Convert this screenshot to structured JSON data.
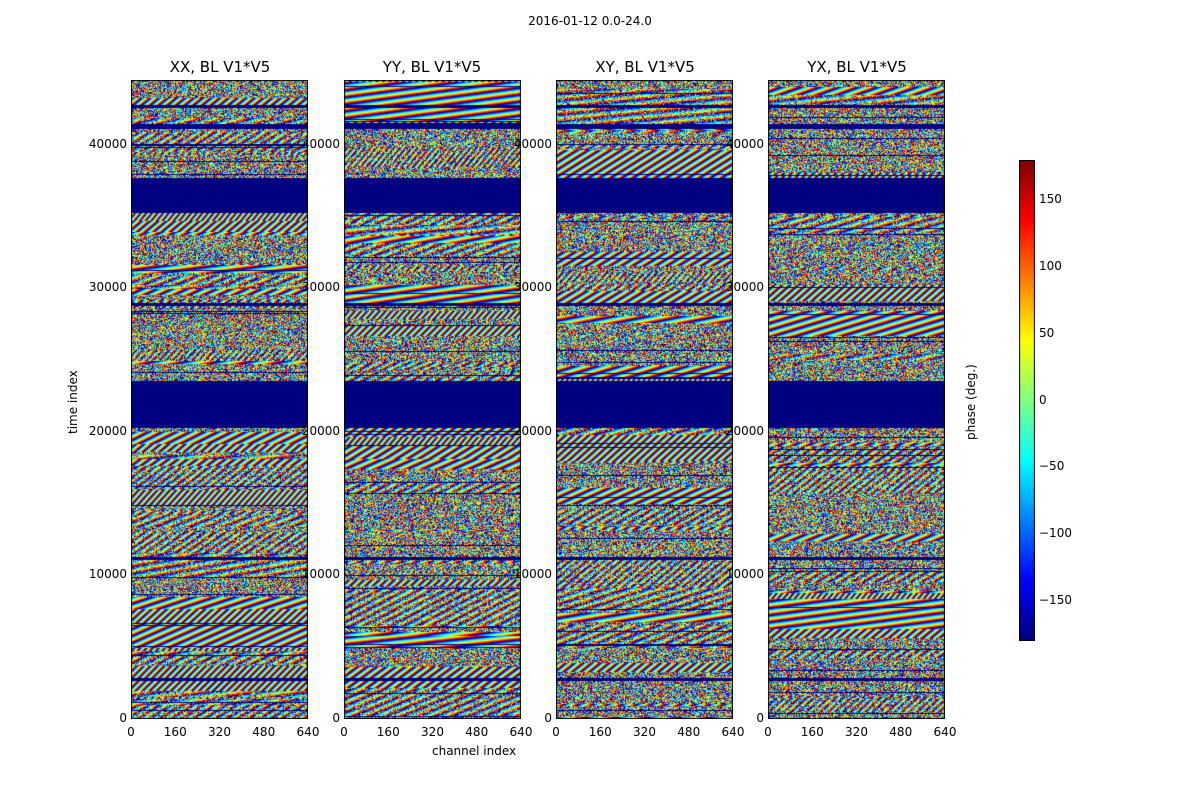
{
  "chart_data": {
    "type": "heatmap",
    "suptitle": "2016-01-12 0.0-24.0",
    "xlabel": "channel index",
    "ylabel": "time index",
    "x_ticks": [
      "0",
      "160",
      "320",
      "480",
      "640"
    ],
    "x_tick_values": [
      0,
      160,
      320,
      480,
      640
    ],
    "y_ticks": [
      "0",
      "10000",
      "20000",
      "30000",
      "40000"
    ],
    "y_tick_values": [
      0,
      10000,
      20000,
      30000,
      40000
    ],
    "xlim": [
      0,
      640
    ],
    "ylim": [
      0,
      44500
    ],
    "colormap": "jet",
    "colorbar": {
      "label": "phase (deg.)",
      "range": [
        -180,
        180
      ],
      "ticks": [
        "150",
        "100",
        "50",
        "0",
        "−50",
        "−100",
        "−150"
      ],
      "tick_values": [
        150,
        100,
        50,
        0,
        -50,
        -100,
        -150
      ]
    },
    "panels": [
      {
        "title": "XX, BL V1*V5",
        "pol": "XX"
      },
      {
        "title": "YY, BL V1*V5",
        "pol": "YY"
      },
      {
        "title": "XY, BL V1*V5",
        "pol": "XY"
      },
      {
        "title": "YX, BL V1*V5",
        "pol": "YX"
      }
    ],
    "flagged_time_ranges": [
      [
        35300,
        37700
      ],
      [
        20300,
        23600
      ],
      [
        41100,
        41500
      ],
      [
        42600,
        42800
      ],
      [
        28800,
        29000
      ],
      [
        11100,
        11300
      ],
      [
        2700,
        2900
      ]
    ],
    "flagged_value": -180
  }
}
